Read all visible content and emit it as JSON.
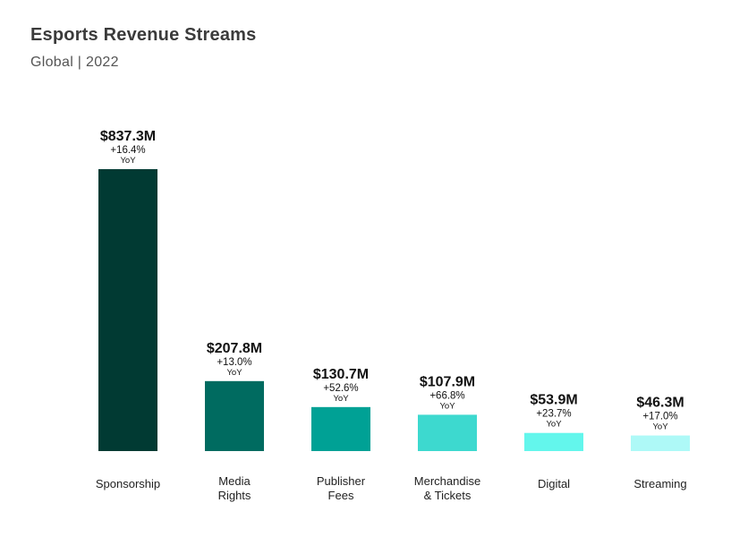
{
  "header": {
    "title": "Esports Revenue Streams",
    "subtitle": "Global | 2022"
  },
  "chart_data": {
    "type": "bar",
    "title": "Esports Revenue Streams",
    "subtitle": "Global | 2022",
    "categories": [
      [
        "Sponsorship"
      ],
      [
        "Media",
        "Rights"
      ],
      [
        "Publisher",
        "Fees"
      ],
      [
        "Merchandise",
        "& Tickets"
      ],
      [
        "Digital"
      ],
      [
        "Streaming"
      ]
    ],
    "values": [
      837.3,
      207.8,
      130.7,
      107.9,
      53.9,
      46.3
    ],
    "value_labels": [
      "$837.3M",
      "$207.8M",
      "$130.7M",
      "$107.9M",
      "$53.9M",
      "$46.3M"
    ],
    "yoy_change": [
      "+16.4%",
      "+13.0%",
      "+52.6%",
      "+66.8%",
      "+23.7%",
      "+17.0%"
    ],
    "yoy_label": "YoY",
    "unit": "$M",
    "ylim": [
      0,
      837.3
    ],
    "colors": [
      "#013a33",
      "#006b60",
      "#00a195",
      "#3dd9cf",
      "#63f6ec",
      "#aef9f7"
    ],
    "grid": false,
    "legend": "none"
  }
}
